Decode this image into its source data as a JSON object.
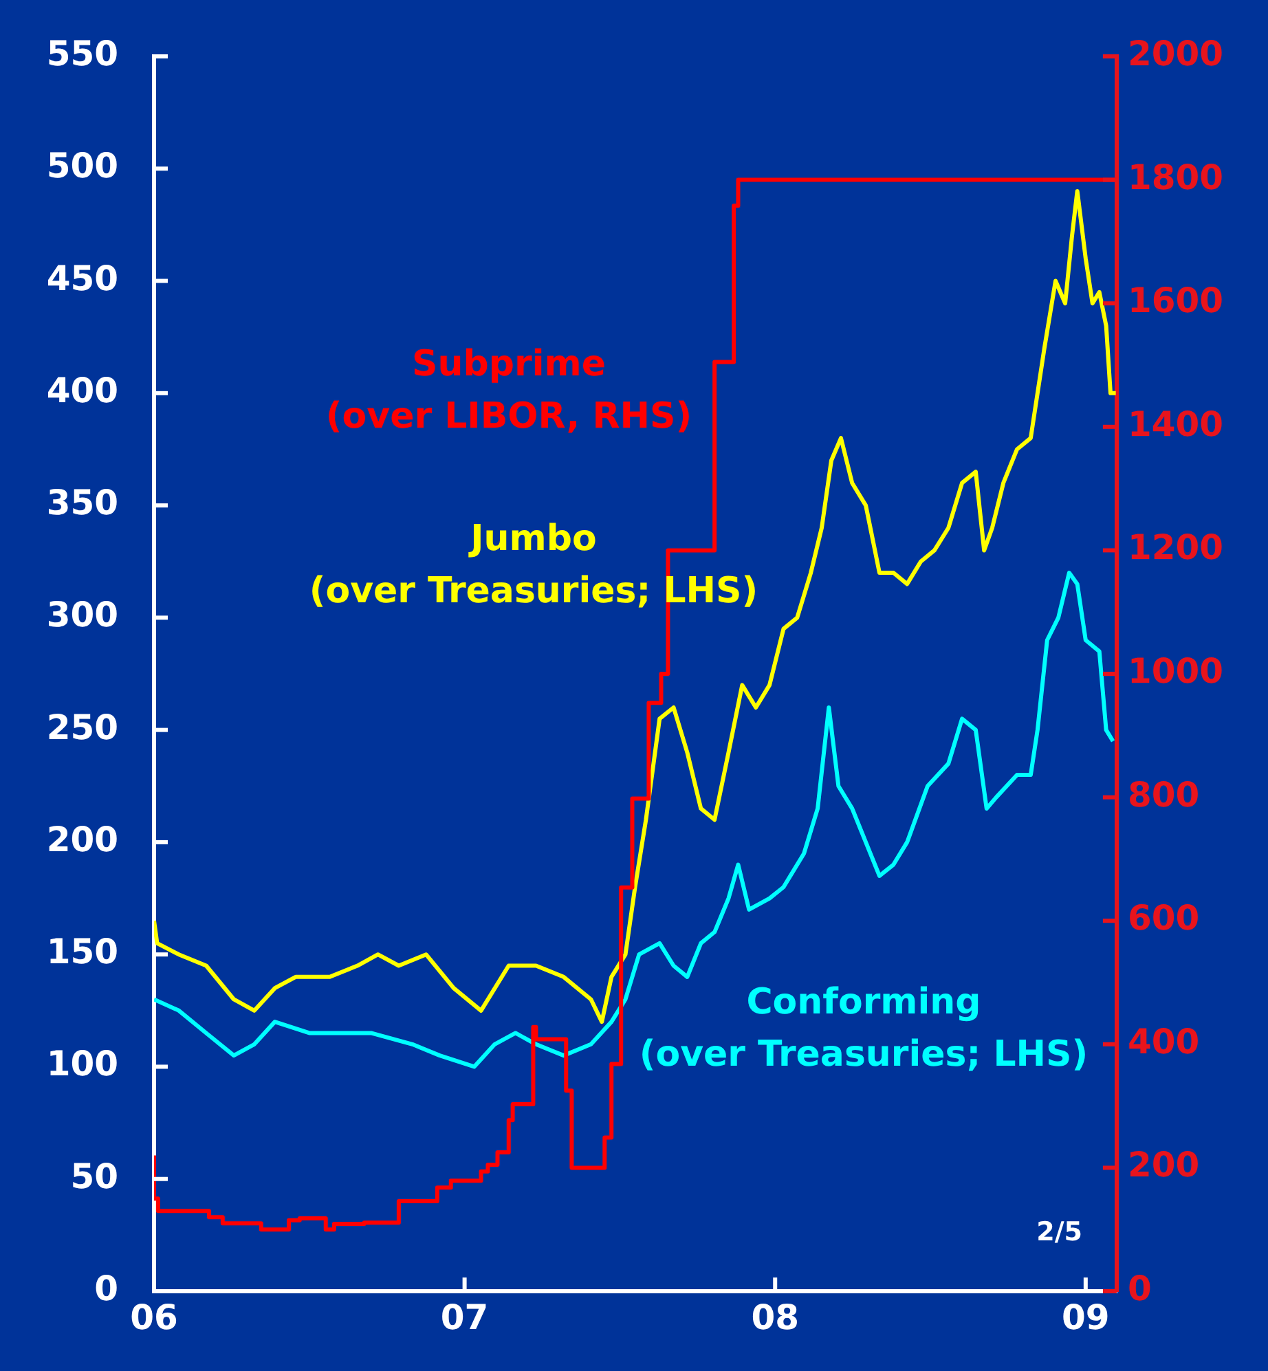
{
  "chart_data": {
    "type": "line",
    "xlim": [
      2006,
      2009.1
    ],
    "xticks": [
      {
        "value": 2006,
        "label": "06"
      },
      {
        "value": 2007,
        "label": "07"
      },
      {
        "value": 2008,
        "label": "08"
      },
      {
        "value": 2009,
        "label": "09"
      }
    ],
    "ylim": [
      0,
      550
    ],
    "yticks": [
      0,
      50,
      100,
      150,
      200,
      250,
      300,
      350,
      400,
      450,
      500,
      550
    ],
    "y2lim": [
      0,
      2000
    ],
    "y2ticks": [
      0,
      200,
      400,
      600,
      800,
      1000,
      1200,
      1400,
      1600,
      1800,
      2000
    ],
    "annotations": [
      "2/5"
    ],
    "series": [
      {
        "name": "Jumbo (over Treasuries; LHS)",
        "color": "#ffff00",
        "x": [
          2006,
          2006.01,
          2006.08,
          2006.168,
          2006.257,
          2006.323,
          2006.389,
          2006.456,
          2006.566,
          2006.655,
          2006.721,
          2006.788,
          2006.876,
          2006.965,
          2007.053,
          2007.142,
          2007.23,
          2007.319,
          2007.407,
          2007.442,
          2007.473,
          2007.518,
          2007.549,
          2007.584,
          2007.628,
          2007.673,
          2007.717,
          2007.761,
          2007.805,
          2007.85,
          2007.894,
          2007.938,
          2007.982,
          2008.027,
          2008.071,
          2008.115,
          2008.15,
          2008.181,
          2008.212,
          2008.248,
          2008.292,
          2008.336,
          2008.381,
          2008.425,
          2008.469,
          2008.513,
          2008.558,
          2008.602,
          2008.646,
          2008.673,
          2008.699,
          2008.735,
          2008.779,
          2008.823,
          2008.867,
          2008.903,
          2008.934,
          2008.956,
          2008.973,
          2009,
          2009.022,
          2009.044,
          2009.066,
          2009.08,
          2009.097
        ],
        "values": [
          165,
          155,
          150,
          145,
          130,
          125,
          135,
          140,
          140,
          145,
          150,
          145,
          150,
          135,
          125,
          145,
          145,
          140,
          130,
          120,
          140,
          150,
          180,
          210,
          255,
          260,
          240,
          215,
          210,
          240,
          270,
          260,
          270,
          295,
          300,
          320,
          340,
          370,
          380,
          360,
          350,
          320,
          320,
          315,
          325,
          330,
          340,
          360,
          365,
          330,
          340,
          360,
          375,
          380,
          420,
          450,
          440,
          470,
          490,
          460,
          440,
          445,
          430,
          400,
          400
        ]
      },
      {
        "name": "Conforming (over Treasuries; LHS)",
        "color": "#00ffff",
        "x": [
          2006,
          2006.08,
          2006.168,
          2006.257,
          2006.323,
          2006.389,
          2006.5,
          2006.611,
          2006.699,
          2006.832,
          2006.92,
          2007.031,
          2007.097,
          2007.164,
          2007.23,
          2007.319,
          2007.407,
          2007.473,
          2007.518,
          2007.562,
          2007.628,
          2007.673,
          2007.717,
          2007.761,
          2007.805,
          2007.85,
          2007.881,
          2007.916,
          2007.982,
          2008.027,
          2008.093,
          2008.137,
          2008.173,
          2008.204,
          2008.248,
          2008.292,
          2008.336,
          2008.381,
          2008.425,
          2008.491,
          2008.558,
          2008.602,
          2008.646,
          2008.681,
          2008.712,
          2008.779,
          2008.823,
          2008.845,
          2008.876,
          2008.912,
          2008.947,
          2008.973,
          2009,
          2009.044,
          2009.066,
          2009.088
        ],
        "values": [
          130,
          125,
          115,
          105,
          110,
          120,
          115,
          115,
          115,
          110,
          105,
          100,
          110,
          115,
          110,
          105,
          110,
          120,
          130,
          150,
          155,
          145,
          140,
          155,
          160,
          175,
          190,
          170,
          175,
          180,
          195,
          215,
          260,
          225,
          215,
          200,
          185,
          190,
          200,
          225,
          235,
          255,
          250,
          215,
          220,
          230,
          230,
          250,
          290,
          300,
          320,
          315,
          290,
          285,
          250,
          245
        ]
      },
      {
        "name": "Subprime (over LIBOR, RHS)",
        "color": "#ff0000",
        "type": "step",
        "axis": "y2",
        "x": [
          2006,
          2006.013,
          2006.177,
          2006.221,
          2006.345,
          2006.434,
          2006.469,
          2006.553,
          2006.58,
          2006.677,
          2006.788,
          2006.912,
          2006.956,
          2007.053,
          2007.075,
          2007.106,
          2007.142,
          2007.155,
          2007.221,
          2007.23,
          2007.327,
          2007.345,
          2007.385,
          2007.451,
          2007.473,
          2007.504,
          2007.54,
          2007.593,
          2007.633,
          2007.655,
          2007.805,
          2007.867,
          2007.881,
          2007.898,
          2009.097
        ],
        "values": [
          220,
          150,
          130,
          120,
          110,
          100,
          115,
          118,
          100,
          109,
          111,
          146,
          168,
          179,
          194,
          205,
          225,
          277,
          303,
          428,
          408,
          325,
          200,
          200,
          249,
          368,
          654,
          798,
          953,
          1000,
          1200,
          1505,
          1758,
          1800,
          1800
        ]
      }
    ]
  }
}
